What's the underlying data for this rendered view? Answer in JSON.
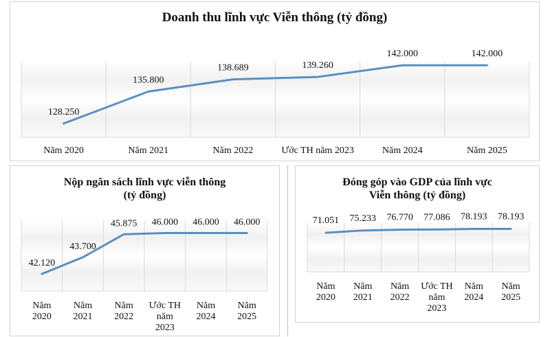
{
  "chart_data": [
    {
      "type": "line",
      "title": "Doanh thu lĩnh vực Viễn thông (tỷ đồng)",
      "categories": [
        "Năm 2020",
        "Năm 2021",
        "Năm 2022",
        "Ước TH năm 2023",
        "Năm 2024",
        "Năm 2025"
      ],
      "values": [
        128250,
        135800,
        138689,
        139260,
        142000,
        142000
      ],
      "data_labels": [
        "128.250",
        "135.800",
        "138.689",
        "139.260",
        "142.000",
        "142.000"
      ],
      "ylim": [
        125000,
        143000
      ],
      "grid": "vertical",
      "legend": "none",
      "line_color": "#5b8fbf"
    },
    {
      "type": "line",
      "title": "Nộp ngân sách lĩnh vực viễn thông (tỷ đồng)",
      "title_lines": [
        "Nộp ngân sách lĩnh vực viễn thông",
        "(tỷ đồng)"
      ],
      "categories": [
        "Năm 2020",
        "Năm 2021",
        "Năm 2022",
        "Ước TH năm 2023",
        "Năm 2024",
        "Năm 2025"
      ],
      "category_lines": [
        [
          "Năm",
          "2020"
        ],
        [
          "Năm",
          "2021"
        ],
        [
          "Năm",
          "2022"
        ],
        [
          "Ước TH",
          "năm",
          "2023"
        ],
        [
          "Năm",
          "2024"
        ],
        [
          "Năm",
          "2025"
        ]
      ],
      "values": [
        42120,
        43700,
        45875,
        46000,
        46000,
        46000
      ],
      "data_labels": [
        "42.120",
        "43.700",
        "45.875",
        "46.000",
        "46.000",
        "46.000"
      ],
      "ylim": [
        40500,
        47200
      ],
      "grid": "vertical",
      "legend": "none",
      "line_color": "#5b8fbf"
    },
    {
      "type": "line",
      "title": "Đóng góp vào GDP của lĩnh vực Viễn thông (tỷ đồng)",
      "title_lines": [
        "Đóng góp vào GDP của lĩnh vực",
        "Viễn thông (tỷ đồng)"
      ],
      "categories": [
        "Năm 2020",
        "Năm 2021",
        "Năm 2022",
        "Ước TH năm 2023",
        "Năm 2024",
        "Năm 2025"
      ],
      "category_lines": [
        [
          "Năm",
          "2020"
        ],
        [
          "Năm",
          "2021"
        ],
        [
          "Năm",
          "2022"
        ],
        [
          "Ước TH",
          "năm",
          "2023"
        ],
        [
          "Năm",
          "2024"
        ],
        [
          "Năm",
          "2025"
        ]
      ],
      "values": [
        71051,
        75233,
        76770,
        77086,
        78193,
        78193
      ],
      "data_labels": [
        "71.051",
        "75.233",
        "76.770",
        "77.086",
        "78.193",
        "78.193"
      ],
      "ylim": [
        0,
        90000
      ],
      "grid": "vertical",
      "legend": "none",
      "line_color": "#5b8fbf"
    }
  ]
}
